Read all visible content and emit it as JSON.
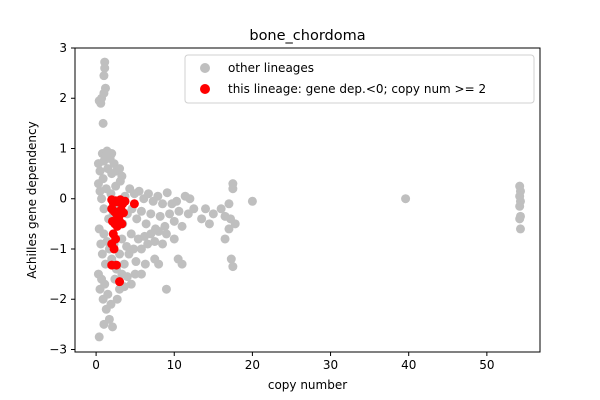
{
  "chart_data": {
    "type": "scatter",
    "title": "bone_chordoma",
    "xlabel": "copy number",
    "ylabel": "Achilles gene dependency",
    "xlim": [
      -2.7,
      56.8
    ],
    "ylim": [
      -3.05,
      3.0
    ],
    "xticks": [
      0,
      10,
      20,
      30,
      40,
      50
    ],
    "yticks": [
      -3,
      -2,
      -1,
      0,
      1,
      2,
      3
    ],
    "grid": false,
    "legend_position": "top-right",
    "series": [
      {
        "name": "other lineages",
        "color": "#bfbfbf",
        "points": [
          [
            0.4,
            1.95
          ],
          [
            0.7,
            2.0
          ],
          [
            1.0,
            2.1
          ],
          [
            1.2,
            2.2
          ],
          [
            1.0,
            2.45
          ],
          [
            1.1,
            2.6
          ],
          [
            1.1,
            2.72
          ],
          [
            0.9,
            1.5
          ],
          [
            0.6,
            1.9
          ],
          [
            0.3,
            0.7
          ],
          [
            0.5,
            0.55
          ],
          [
            0.8,
            0.9
          ],
          [
            1.0,
            0.75
          ],
          [
            1.2,
            0.85
          ],
          [
            1.5,
            0.6
          ],
          [
            1.8,
            0.8
          ],
          [
            2.0,
            0.5
          ],
          [
            2.3,
            0.7
          ],
          [
            2.6,
            0.55
          ],
          [
            3.0,
            0.6
          ],
          [
            3.3,
            0.45
          ],
          [
            1.4,
            0.95
          ],
          [
            0.9,
            0.4
          ],
          [
            2.0,
            0.9
          ],
          [
            0.3,
            0.3
          ],
          [
            0.5,
            0.15
          ],
          [
            0.7,
            0.0
          ],
          [
            1.0,
            -0.2
          ],
          [
            1.3,
            0.2
          ],
          [
            1.6,
            -0.4
          ],
          [
            1.9,
            0.1
          ],
          [
            2.2,
            -0.3
          ],
          [
            2.5,
            0.25
          ],
          [
            2.8,
            -0.1
          ],
          [
            3.1,
            0.35
          ],
          [
            3.4,
            -0.5
          ],
          [
            3.7,
            0.05
          ],
          [
            4.0,
            -0.3
          ],
          [
            4.3,
            0.2
          ],
          [
            4.6,
            -0.2
          ],
          [
            4.9,
            0.1
          ],
          [
            5.2,
            -0.4
          ],
          [
            5.5,
            0.15
          ],
          [
            5.8,
            -0.25
          ],
          [
            6.1,
            0.0
          ],
          [
            6.4,
            -0.5
          ],
          [
            6.7,
            0.1
          ],
          [
            7.0,
            -0.3
          ],
          [
            7.3,
            -0.05
          ],
          [
            7.6,
            -0.6
          ],
          [
            7.9,
            0.05
          ],
          [
            8.2,
            -0.35
          ],
          [
            8.5,
            -0.1
          ],
          [
            8.8,
            -0.55
          ],
          [
            9.1,
            0.12
          ],
          [
            9.4,
            -0.3
          ],
          [
            9.7,
            -0.1
          ],
          [
            10.0,
            -0.45
          ],
          [
            10.3,
            -0.05
          ],
          [
            10.6,
            -0.25
          ],
          [
            11.0,
            -0.55
          ],
          [
            11.4,
            0.05
          ],
          [
            11.8,
            -0.3
          ],
          [
            0.4,
            -0.6
          ],
          [
            0.6,
            -0.9
          ],
          [
            0.8,
            -1.1
          ],
          [
            1.0,
            -0.7
          ],
          [
            1.2,
            -1.3
          ],
          [
            1.4,
            -0.85
          ],
          [
            1.7,
            -1.0
          ],
          [
            2.0,
            -1.2
          ],
          [
            2.3,
            -0.9
          ],
          [
            2.6,
            -1.4
          ],
          [
            3.0,
            -1.1
          ],
          [
            3.3,
            -0.8
          ],
          [
            3.6,
            -1.3
          ],
          [
            3.9,
            -0.95
          ],
          [
            4.2,
            -1.1
          ],
          [
            4.5,
            -0.7
          ],
          [
            4.8,
            -1.0
          ],
          [
            5.1,
            -1.25
          ],
          [
            5.4,
            -0.8
          ],
          [
            5.8,
            -1.0
          ],
          [
            6.2,
            -0.75
          ],
          [
            6.6,
            -0.9
          ],
          [
            7.0,
            -0.7
          ],
          [
            7.5,
            -0.85
          ],
          [
            8.0,
            -0.65
          ],
          [
            8.5,
            -0.9
          ],
          [
            9.0,
            -0.7
          ],
          [
            10.0,
            -0.8
          ],
          [
            0.3,
            -1.5
          ],
          [
            0.5,
            -1.8
          ],
          [
            0.7,
            -1.6
          ],
          [
            0.9,
            -2.0
          ],
          [
            1.1,
            -1.7
          ],
          [
            1.3,
            -2.2
          ],
          [
            1.5,
            -1.9
          ],
          [
            1.7,
            -2.4
          ],
          [
            1.9,
            -2.1
          ],
          [
            2.1,
            -2.55
          ],
          [
            0.4,
            -2.75
          ],
          [
            1.0,
            -2.5
          ],
          [
            2.4,
            -1.6
          ],
          [
            2.7,
            -2.0
          ],
          [
            3.0,
            -1.8
          ],
          [
            3.3,
            -1.5
          ],
          [
            3.6,
            -1.75
          ],
          [
            4.0,
            -1.55
          ],
          [
            4.5,
            -1.7
          ],
          [
            5.0,
            -1.5
          ],
          [
            5.8,
            -1.5
          ],
          [
            6.3,
            -1.3
          ],
          [
            7.5,
            -1.2
          ],
          [
            8.0,
            -1.3
          ],
          [
            9.0,
            -1.8
          ],
          [
            10.5,
            -1.2
          ],
          [
            11.0,
            -1.3
          ],
          [
            12.0,
            0.0
          ],
          [
            12.5,
            -0.2
          ],
          [
            13.5,
            -0.4
          ],
          [
            14.0,
            -0.2
          ],
          [
            14.5,
            -0.5
          ],
          [
            15.0,
            -0.3
          ],
          [
            16.0,
            -0.2
          ],
          [
            16.5,
            -0.35
          ],
          [
            17.0,
            -0.1
          ],
          [
            17.2,
            -0.4
          ],
          [
            17.5,
            0.2
          ],
          [
            17.5,
            0.3
          ],
          [
            17.8,
            -0.5
          ],
          [
            16.5,
            -0.8
          ],
          [
            17.3,
            -1.2
          ],
          [
            17.5,
            -1.35
          ],
          [
            17.0,
            -0.6
          ],
          [
            20.0,
            -0.05
          ],
          [
            39.6,
            0.0
          ],
          [
            54.2,
            0.25
          ],
          [
            54.3,
            0.15
          ],
          [
            54.2,
            0.05
          ],
          [
            54.3,
            -0.05
          ],
          [
            54.2,
            -0.15
          ],
          [
            54.3,
            -0.35
          ],
          [
            54.2,
            -0.4
          ],
          [
            54.3,
            -0.6
          ]
        ]
      },
      {
        "name": "this lineage: gene dep.<0; copy num >= 2",
        "color": "#ff0000",
        "points": [
          [
            2.0,
            -0.02
          ],
          [
            2.2,
            -0.08
          ],
          [
            2.5,
            -0.04
          ],
          [
            2.8,
            -0.06
          ],
          [
            3.1,
            -0.02
          ],
          [
            3.4,
            -0.1
          ],
          [
            3.7,
            -0.05
          ],
          [
            4.9,
            -0.1
          ],
          [
            2.0,
            -0.2
          ],
          [
            2.3,
            -0.25
          ],
          [
            2.6,
            -0.3
          ],
          [
            2.9,
            -0.35
          ],
          [
            3.2,
            -0.22
          ],
          [
            3.5,
            -0.28
          ],
          [
            2.1,
            -0.45
          ],
          [
            2.4,
            -0.5
          ],
          [
            2.7,
            -0.55
          ],
          [
            3.0,
            -0.45
          ],
          [
            3.3,
            -0.5
          ],
          [
            2.2,
            -0.7
          ],
          [
            2.5,
            -0.8
          ],
          [
            2.0,
            -0.9
          ],
          [
            2.3,
            -1.0
          ],
          [
            2.0,
            -1.32
          ],
          [
            2.6,
            -1.32
          ],
          [
            3.0,
            -1.65
          ]
        ]
      }
    ]
  }
}
